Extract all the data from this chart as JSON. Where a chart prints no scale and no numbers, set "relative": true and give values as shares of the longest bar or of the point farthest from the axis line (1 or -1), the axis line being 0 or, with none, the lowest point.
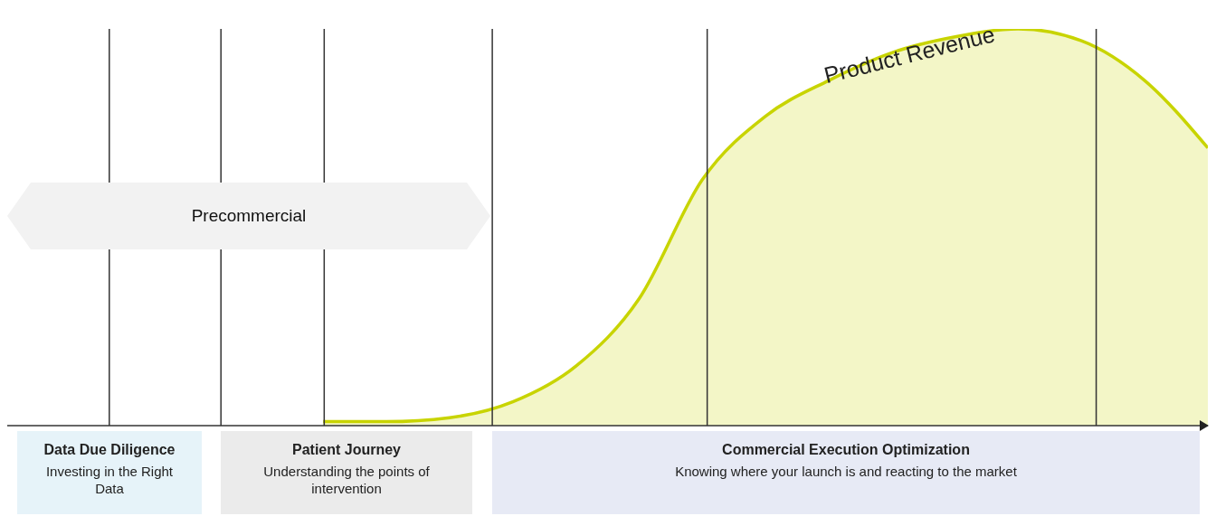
{
  "chart_data": {
    "type": "area",
    "relative": true,
    "categories": [
      null,
      null,
      null,
      null,
      null,
      null,
      null,
      null,
      null,
      null,
      null,
      null,
      null,
      null,
      null,
      null,
      null,
      null,
      null,
      null
    ],
    "series": [
      {
        "color": "#c8d400",
        "values": [
          null,
          null,
          null,
          null,
          null,
          0.01,
          0.01,
          0.02,
          0.06,
          0.15,
          0.32,
          0.62,
          0.78,
          0.87,
          0.94,
          0.98,
          1,
          0.97,
          0.87,
          0.7
        ]
      }
    ],
    "annotations": [
      "Precommercial",
      "Product Revenue",
      "Data Due Diligence",
      "Investing in the Right Data",
      "Patient Journey",
      "Understanding the points of intervention",
      "Commercial Execution Optimization",
      "Knowing where your launch is and reacting to the market"
    ]
  }
}
